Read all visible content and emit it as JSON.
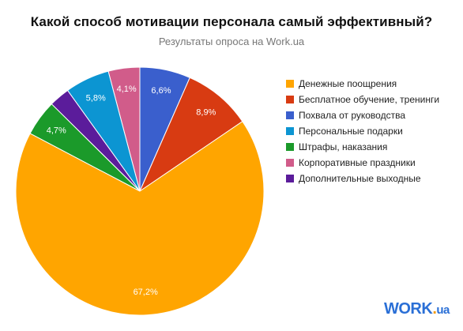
{
  "chart_data": {
    "type": "pie",
    "title": "Какой способ мотивации персонала самый эффективный?",
    "subtitle": "Результаты опроса на Work.ua",
    "categories": [
      "Денежные поощрения",
      "Бесплатное обучение, тренинги",
      "Похвала от руководства",
      "Персональные подарки",
      "Штрафы, наказания",
      "Корпоративные праздники",
      "Дополнительные выходные"
    ],
    "values": [
      67.2,
      8.9,
      6.6,
      5.8,
      4.7,
      4.1,
      2.7
    ],
    "data_labels": [
      "67,2%",
      "8,9%",
      "6,6%",
      "5,8%",
      "4,7%",
      "4,1%",
      ""
    ],
    "colors": [
      "#ffa500",
      "#d83b12",
      "#3a5fcd",
      "#0c95d2",
      "#1b9a2a",
      "#d15c8a",
      "#5b1c9b"
    ],
    "legend_position": "right"
  },
  "logo": {
    "text": "WORK",
    "suffix": "ua"
  }
}
